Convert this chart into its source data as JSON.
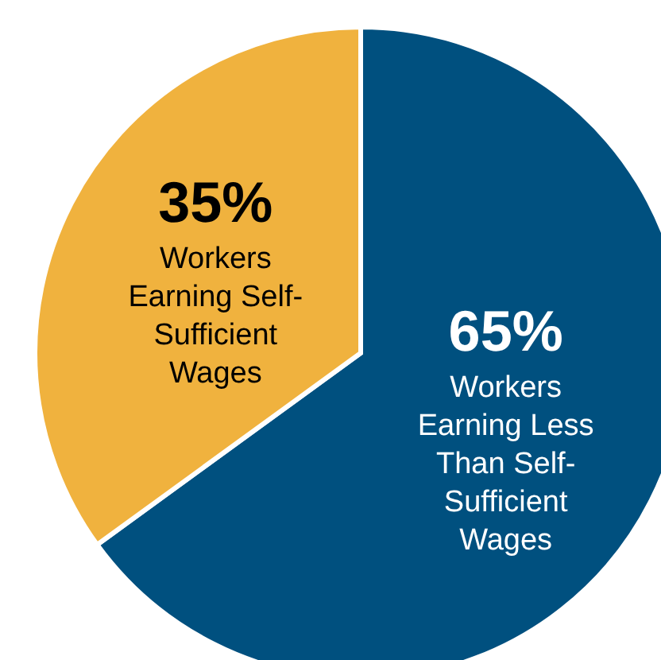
{
  "chart_data": {
    "type": "pie",
    "categories": [
      "Workers Earning Less Than Self-Sufficient Wages",
      "Workers Earning Self-Sufficient Wages"
    ],
    "values": [
      65,
      35
    ],
    "value_labels": [
      "65%",
      "35%"
    ],
    "colors": [
      "#00507f",
      "#f0b23e"
    ],
    "legend": false
  }
}
